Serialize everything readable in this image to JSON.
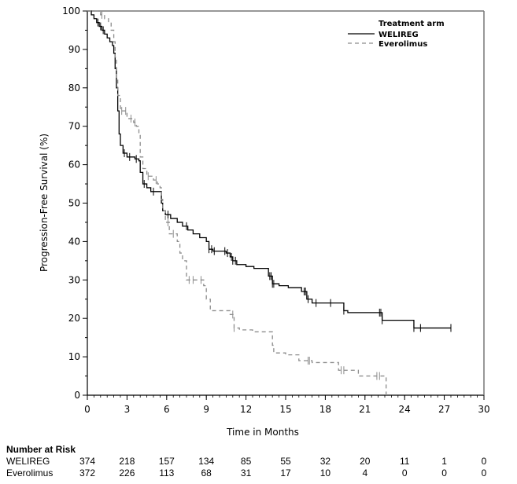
{
  "chart_data": {
    "type": "line",
    "subtype": "kaplan-meier",
    "title": "",
    "xlabel": "Time in Months",
    "ylabel": "Progression-Free Survival (%)",
    "xlim": [
      0,
      30
    ],
    "ylim": [
      0,
      100
    ],
    "x_ticks": [
      0,
      3,
      6,
      9,
      12,
      15,
      18,
      21,
      24,
      27,
      30
    ],
    "y_ticks": [
      0,
      10,
      20,
      30,
      40,
      50,
      60,
      70,
      80,
      90,
      100
    ],
    "grid": false,
    "legend": {
      "title": "Treatment arm",
      "placement": "top-right",
      "entries": [
        {
          "name": "WELIREG",
          "style": "solid",
          "color": "#000000"
        },
        {
          "name": "Everolimus",
          "style": "dashed",
          "color": "#8c8c8c"
        }
      ]
    },
    "series": [
      {
        "name": "WELIREG",
        "color": "#000000",
        "dash": false,
        "points": [
          [
            0,
            100
          ],
          [
            0.3,
            99
          ],
          [
            0.5,
            98
          ],
          [
            0.7,
            97
          ],
          [
            0.9,
            96
          ],
          [
            1.1,
            95
          ],
          [
            1.3,
            94
          ],
          [
            1.5,
            93
          ],
          [
            1.7,
            92
          ],
          [
            1.9,
            91
          ],
          [
            2.0,
            89
          ],
          [
            2.1,
            85
          ],
          [
            2.2,
            80
          ],
          [
            2.3,
            74
          ],
          [
            2.4,
            68
          ],
          [
            2.5,
            65
          ],
          [
            2.7,
            63
          ],
          [
            3.0,
            62
          ],
          [
            3.3,
            62
          ],
          [
            3.6,
            61.5
          ],
          [
            3.9,
            61
          ],
          [
            4.0,
            58
          ],
          [
            4.2,
            55
          ],
          [
            4.5,
            54
          ],
          [
            4.8,
            53
          ],
          [
            5.2,
            53
          ],
          [
            5.5,
            53
          ],
          [
            5.6,
            50
          ],
          [
            5.7,
            48
          ],
          [
            5.9,
            47
          ],
          [
            6.3,
            46
          ],
          [
            6.8,
            45
          ],
          [
            7.2,
            44
          ],
          [
            7.6,
            43
          ],
          [
            8.0,
            42
          ],
          [
            8.5,
            41
          ],
          [
            9.0,
            40
          ],
          [
            9.2,
            38
          ],
          [
            9.5,
            37.5
          ],
          [
            10.5,
            37
          ],
          [
            10.8,
            36
          ],
          [
            11.0,
            35
          ],
          [
            11.3,
            34
          ],
          [
            12.0,
            33.5
          ],
          [
            12.6,
            33
          ],
          [
            13.5,
            33
          ],
          [
            13.7,
            31
          ],
          [
            14.0,
            29
          ],
          [
            14.5,
            28.5
          ],
          [
            15.2,
            28
          ],
          [
            16.0,
            28
          ],
          [
            16.2,
            27
          ],
          [
            16.6,
            25
          ],
          [
            17.0,
            24
          ],
          [
            18.0,
            24
          ],
          [
            19.2,
            24
          ],
          [
            19.4,
            22
          ],
          [
            19.7,
            21.5
          ],
          [
            20.5,
            21.5
          ],
          [
            21.5,
            21.5
          ],
          [
            22.3,
            19.5
          ],
          [
            24.5,
            19.5
          ],
          [
            24.7,
            17.5
          ],
          [
            27.5,
            17.5
          ]
        ],
        "censor_times": [
          0.8,
          1.0,
          1.2,
          2.8,
          3.2,
          3.7,
          4.3,
          5.0,
          6.1,
          7.5,
          9.2,
          9.4,
          9.6,
          10.4,
          10.6,
          10.9,
          11.0,
          11.2,
          13.8,
          13.9,
          14.0,
          14.1,
          16.4,
          16.5,
          16.7,
          17.3,
          18.4,
          19.4,
          22.1,
          22.2,
          22.3,
          24.7,
          25.2,
          27.5
        ]
      },
      {
        "name": "Everolimus",
        "color": "#8c8c8c",
        "dash": true,
        "points": [
          [
            0,
            100
          ],
          [
            0.8,
            100
          ],
          [
            1.0,
            99
          ],
          [
            1.3,
            98
          ],
          [
            1.6,
            97
          ],
          [
            1.8,
            95
          ],
          [
            2.0,
            92
          ],
          [
            2.1,
            88
          ],
          [
            2.2,
            82
          ],
          [
            2.3,
            78
          ],
          [
            2.5,
            74
          ],
          [
            3.0,
            72
          ],
          [
            3.5,
            71
          ],
          [
            3.7,
            70
          ],
          [
            3.9,
            68
          ],
          [
            4.0,
            62
          ],
          [
            4.2,
            59
          ],
          [
            4.5,
            57
          ],
          [
            5.0,
            56
          ],
          [
            5.3,
            55
          ],
          [
            5.5,
            54
          ],
          [
            5.6,
            51
          ],
          [
            5.7,
            48
          ],
          [
            5.9,
            45
          ],
          [
            6.2,
            42
          ],
          [
            6.8,
            40
          ],
          [
            7.0,
            37
          ],
          [
            7.2,
            35
          ],
          [
            7.5,
            30
          ],
          [
            8.0,
            30
          ],
          [
            8.8,
            28.5
          ],
          [
            9.0,
            25
          ],
          [
            9.3,
            22
          ],
          [
            10.0,
            22
          ],
          [
            10.8,
            21
          ],
          [
            11.1,
            17.5
          ],
          [
            11.5,
            17
          ],
          [
            12.5,
            16.5
          ],
          [
            13.9,
            16.5
          ],
          [
            14.0,
            13
          ],
          [
            14.1,
            11
          ],
          [
            15.0,
            10.5
          ],
          [
            16.0,
            9
          ],
          [
            17.0,
            8.5
          ],
          [
            19.0,
            6.5
          ],
          [
            20.5,
            5
          ],
          [
            22.5,
            5
          ],
          [
            22.6,
            0
          ]
        ],
        "censor_times": [
          1.1,
          2.6,
          2.9,
          3.3,
          3.6,
          4.6,
          5.2,
          6.1,
          6.5,
          7.7,
          8.0,
          8.6,
          11.0,
          11.1,
          16.7,
          16.8,
          19.2,
          19.4,
          21.9,
          22.1
        ]
      }
    ],
    "number_at_risk": {
      "title": "Number at Risk",
      "times": [
        0,
        3,
        6,
        9,
        12,
        15,
        18,
        21,
        24,
        27,
        30
      ],
      "rows": [
        {
          "name": "WELIREG",
          "values": [
            374,
            218,
            157,
            134,
            85,
            55,
            32,
            20,
            11,
            1,
            0
          ]
        },
        {
          "name": "Everolimus",
          "values": [
            372,
            226,
            113,
            68,
            31,
            17,
            10,
            4,
            0,
            0,
            0
          ]
        }
      ]
    }
  }
}
